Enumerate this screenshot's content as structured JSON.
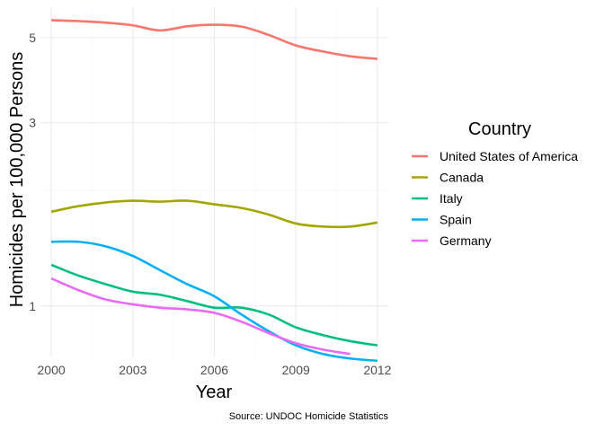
{
  "chart_data": {
    "type": "line",
    "title": "",
    "xlabel": "Year",
    "ylabel": "Homicides per 100,000 Persons",
    "caption": "Source: UNDOC Homicide Statistics",
    "x_scale": "linear",
    "y_scale": "log",
    "xlim": [
      1999.6,
      2012.4
    ],
    "ylim": [
      0.735,
      6.0
    ],
    "x_ticks": [
      2000,
      2003,
      2006,
      2009,
      2012
    ],
    "x_tick_labels": [
      "2000",
      "2003",
      "2006",
      "2009",
      "2012"
    ],
    "y_ticks": [
      1,
      3,
      5
    ],
    "y_tick_labels": [
      "1",
      "3",
      "5"
    ],
    "y_minor_gridlines": [
      2
    ],
    "legend": {
      "title": "Country",
      "position": "right"
    },
    "x": [
      2000,
      2001,
      2002,
      2003,
      2004,
      2005,
      2006,
      2007,
      2008,
      2009,
      2010,
      2011,
      2012
    ],
    "series": [
      {
        "name": "United States of America",
        "color": "#F8766D",
        "x": [
          2000,
          2001,
          2002,
          2003,
          2004,
          2005,
          2006,
          2007,
          2008,
          2009,
          2010,
          2011,
          2012
        ],
        "values": [
          5.55,
          5.52,
          5.47,
          5.38,
          5.22,
          5.35,
          5.4,
          5.34,
          5.08,
          4.77,
          4.6,
          4.47,
          4.4
        ]
      },
      {
        "name": "Canada",
        "color": "#A3A500",
        "x": [
          2000,
          2001,
          2002,
          2003,
          2004,
          2005,
          2006,
          2007,
          2008,
          2009,
          2010,
          2011,
          2012
        ],
        "values": [
          1.76,
          1.82,
          1.86,
          1.88,
          1.87,
          1.88,
          1.84,
          1.8,
          1.73,
          1.64,
          1.61,
          1.61,
          1.65
        ]
      },
      {
        "name": "Italy",
        "color": "#00BF7D",
        "x": [
          2000,
          2001,
          2002,
          2003,
          2004,
          2005,
          2006,
          2007,
          2008,
          2009,
          2010,
          2011,
          2012
        ],
        "values": [
          1.28,
          1.2,
          1.14,
          1.09,
          1.07,
          1.03,
          0.99,
          0.99,
          0.95,
          0.88,
          0.84,
          0.81,
          0.79
        ]
      },
      {
        "name": "Spain",
        "color": "#00B0F6",
        "x": [
          2000,
          2001,
          2002,
          2003,
          2004,
          2005,
          2006,
          2007,
          2008,
          2009,
          2010,
          2011,
          2012
        ],
        "values": [
          1.47,
          1.47,
          1.43,
          1.35,
          1.24,
          1.14,
          1.06,
          0.95,
          0.86,
          0.79,
          0.75,
          0.73,
          0.72
        ]
      },
      {
        "name": "Germany",
        "color": "#E76BF3",
        "x": [
          2000,
          2001,
          2002,
          2003,
          2004,
          2005,
          2006,
          2007,
          2008,
          2009,
          2010,
          2011
        ],
        "values": [
          1.18,
          1.1,
          1.04,
          1.01,
          0.99,
          0.98,
          0.96,
          0.91,
          0.85,
          0.8,
          0.77,
          0.75
        ]
      }
    ]
  }
}
